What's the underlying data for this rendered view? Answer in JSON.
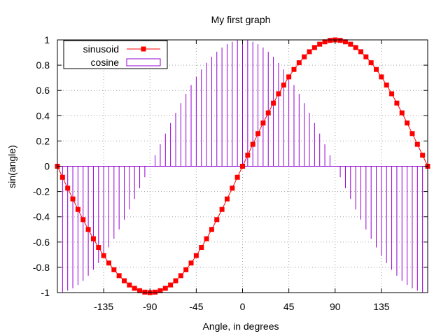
{
  "chart_data": {
    "type": "line",
    "title": "My first graph",
    "xlabel": "Angle, in degrees",
    "ylabel": "sin(angle)",
    "xlim": [
      -180,
      180
    ],
    "ylim": [
      -1,
      1
    ],
    "xticks": [
      -135,
      -90,
      -45,
      0,
      45,
      90,
      135
    ],
    "yticks": [
      -1,
      -0.8,
      -0.6,
      -0.4,
      -0.2,
      0,
      0.2,
      0.4,
      0.6,
      0.8,
      1
    ],
    "ytick_labels": [
      "-1",
      "-0.8",
      "-0.6",
      "-0.4",
      "-0.2",
      "0",
      "0.2",
      "0.4",
      "0.6",
      "0.8",
      "1"
    ],
    "grid": true,
    "legend_position": "top-left",
    "x": [
      -180,
      -175,
      -170,
      -165,
      -160,
      -155,
      -150,
      -145,
      -140,
      -135,
      -130,
      -125,
      -120,
      -115,
      -110,
      -105,
      -100,
      -95,
      -90,
      -85,
      -80,
      -75,
      -70,
      -65,
      -60,
      -55,
      -50,
      -45,
      -40,
      -35,
      -30,
      -25,
      -20,
      -15,
      -10,
      -5,
      0,
      5,
      10,
      15,
      20,
      25,
      30,
      35,
      40,
      45,
      50,
      55,
      60,
      65,
      70,
      75,
      80,
      85,
      90,
      95,
      100,
      105,
      110,
      115,
      120,
      125,
      130,
      135,
      140,
      145,
      150,
      155,
      160,
      165,
      170,
      175,
      180
    ],
    "series": [
      {
        "name": "sinusoid",
        "style": "linespoints",
        "color": "#ff0000",
        "values": [
          0,
          -0.0872,
          -0.1736,
          -0.2588,
          -0.342,
          -0.4226,
          -0.5,
          -0.5736,
          -0.6428,
          -0.7071,
          -0.766,
          -0.8192,
          -0.866,
          -0.9063,
          -0.9397,
          -0.9659,
          -0.9848,
          -0.9962,
          -1,
          -0.9962,
          -0.9848,
          -0.9659,
          -0.9397,
          -0.9063,
          -0.866,
          -0.8192,
          -0.766,
          -0.7071,
          -0.6428,
          -0.5736,
          -0.5,
          -0.4226,
          -0.342,
          -0.2588,
          -0.1736,
          -0.0872,
          0,
          0.0872,
          0.1736,
          0.2588,
          0.342,
          0.4226,
          0.5,
          0.5736,
          0.6428,
          0.7071,
          0.766,
          0.8192,
          0.866,
          0.9063,
          0.9397,
          0.9659,
          0.9848,
          0.9962,
          1,
          0.9962,
          0.9848,
          0.9659,
          0.9397,
          0.9063,
          0.866,
          0.8192,
          0.766,
          0.7071,
          0.6428,
          0.5736,
          0.5,
          0.4226,
          0.342,
          0.2588,
          0.1736,
          0.0872,
          0
        ]
      },
      {
        "name": "cosine",
        "style": "impulses",
        "color": "#9400d3",
        "values": [
          -1,
          -0.9962,
          -0.9848,
          -0.9659,
          -0.9397,
          -0.9063,
          -0.866,
          -0.8192,
          -0.766,
          -0.7071,
          -0.6428,
          -0.5736,
          -0.5,
          -0.4226,
          -0.342,
          -0.2588,
          -0.1736,
          -0.0872,
          0,
          0.0872,
          0.1736,
          0.2588,
          0.342,
          0.4226,
          0.5,
          0.5736,
          0.6428,
          0.7071,
          0.766,
          0.8192,
          0.866,
          0.9063,
          0.9397,
          0.9659,
          0.9848,
          0.9962,
          1,
          0.9962,
          0.9848,
          0.9659,
          0.9397,
          0.9063,
          0.866,
          0.8192,
          0.766,
          0.7071,
          0.6428,
          0.5736,
          0.5,
          0.4226,
          0.342,
          0.2588,
          0.1736,
          0.0872,
          0,
          -0.0872,
          -0.1736,
          -0.2588,
          -0.342,
          -0.4226,
          -0.5,
          -0.5736,
          -0.6428,
          -0.7071,
          -0.766,
          -0.8192,
          -0.866,
          -0.9063,
          -0.9397,
          -0.9659,
          -0.9848,
          -0.9962,
          -1
        ]
      }
    ]
  }
}
